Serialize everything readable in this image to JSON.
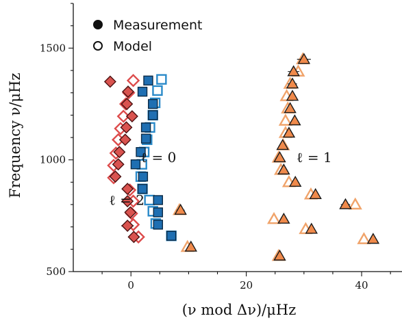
{
  "chart_data": {
    "type": "scatter",
    "xlabel": "(ν mod Δν)/μHz",
    "ylabel": "Frequency ν/μHz",
    "xlim": [
      -10,
      47
    ],
    "ylim": [
      500,
      1700
    ],
    "xticks": [
      0,
      20,
      40
    ],
    "yticks": [
      500,
      1000,
      1500
    ],
    "grid": false,
    "legend": {
      "position": "top-left",
      "entries": [
        {
          "label": "Measurement",
          "marker": "filled-circle"
        },
        {
          "label": "Model",
          "marker": "open-circle"
        }
      ]
    },
    "annotations": [
      {
        "text": "ℓ = 0",
        "x": 1.7,
        "y": 990
      },
      {
        "text": "ℓ = 1",
        "x": 28.7,
        "y": 990
      },
      {
        "text": "ℓ = 2",
        "x": -3.8,
        "y": 798
      }
    ],
    "colors": {
      "l0_fill": "#1f6fb2",
      "l0_edge": "#0b2a45",
      "l0_model": "#2a8ac9",
      "l1_fill": "#f08a4b",
      "l1_edge": "#1a1a1a",
      "l1_model": "#f0a36a",
      "l2_fill": "#d9534f",
      "l2_edge": "#4a1010",
      "l2_model": "#dd4b4b"
    },
    "series": [
      {
        "degree": 0,
        "kind": "measurement",
        "marker": "square",
        "points": [
          {
            "x": 3.0,
            "y": 1355,
            "xerr": 0.8
          },
          {
            "x": 2.0,
            "y": 1305,
            "xerr": 0.6
          },
          {
            "x": 3.8,
            "y": 1250,
            "xerr": 0.6
          },
          {
            "x": 3.8,
            "y": 1200,
            "xerr": 0.5
          },
          {
            "x": 2.6,
            "y": 1145,
            "xerr": 0.5
          },
          {
            "x": 2.6,
            "y": 1095,
            "xerr": 0.5
          },
          {
            "x": 1.7,
            "y": 1035,
            "xerr": 0.6
          },
          {
            "x": 0.8,
            "y": 980,
            "xerr": 0.7
          },
          {
            "x": 2.1,
            "y": 925,
            "xerr": 0.5
          },
          {
            "x": 2.0,
            "y": 870,
            "xerr": 0.5
          },
          {
            "x": 4.7,
            "y": 820,
            "xerr": 0.5
          },
          {
            "x": 4.7,
            "y": 765,
            "xerr": 0.5
          },
          {
            "x": 4.7,
            "y": 710,
            "xerr": 0.6
          },
          {
            "x": 7.0,
            "y": 660,
            "xerr": 0.7
          }
        ]
      },
      {
        "degree": 0,
        "kind": "model",
        "marker": "square",
        "points": [
          {
            "x": 5.3,
            "y": 1360
          },
          {
            "x": 4.6,
            "y": 1310
          },
          {
            "x": 4.2,
            "y": 1255
          },
          {
            "x": 3.8,
            "y": 1200
          },
          {
            "x": 3.3,
            "y": 1145
          },
          {
            "x": 2.8,
            "y": 1090
          },
          {
            "x": 2.3,
            "y": 1035
          },
          {
            "x": 1.9,
            "y": 980
          },
          {
            "x": 1.7,
            "y": 925
          },
          {
            "x": 2.0,
            "y": 870
          },
          {
            "x": 3.2,
            "y": 820
          },
          {
            "x": 3.8,
            "y": 770
          },
          {
            "x": 4.3,
            "y": 715
          },
          {
            "x": 7.0,
            "y": 660
          }
        ]
      },
      {
        "degree": 1,
        "kind": "measurement",
        "marker": "triangle",
        "points": [
          {
            "x": 30.0,
            "y": 1450,
            "xerr": 1.2
          },
          {
            "x": 28.2,
            "y": 1395,
            "xerr": 1.0
          },
          {
            "x": 28.0,
            "y": 1340,
            "xerr": 0.8
          },
          {
            "x": 28.0,
            "y": 1285,
            "xerr": 0.6
          },
          {
            "x": 27.6,
            "y": 1230,
            "xerr": 0.6
          },
          {
            "x": 28.4,
            "y": 1175,
            "xerr": 0.6
          },
          {
            "x": 27.4,
            "y": 1120,
            "xerr": 0.6
          },
          {
            "x": 26.3,
            "y": 1065,
            "xerr": 0.6
          },
          {
            "x": 25.8,
            "y": 1010,
            "xerr": 0.6
          },
          {
            "x": 26.5,
            "y": 955,
            "xerr": 0.6
          },
          {
            "x": 28.5,
            "y": 900,
            "xerr": 0.6
          },
          {
            "x": 32.0,
            "y": 845,
            "xerr": 0.6
          },
          {
            "x": 37.2,
            "y": 800,
            "xerr": 0.8
          },
          {
            "x": 8.6,
            "y": 775,
            "xerr": 0.7
          },
          {
            "x": 26.5,
            "y": 735,
            "xerr": 0.5
          },
          {
            "x": 31.3,
            "y": 690,
            "xerr": 0.6
          },
          {
            "x": 42.0,
            "y": 645,
            "xerr": 0.6
          },
          {
            "x": 10.4,
            "y": 610,
            "xerr": 0.6
          },
          {
            "x": 25.8,
            "y": 570,
            "xerr": 0.6
          }
        ]
      },
      {
        "degree": 1,
        "kind": "model",
        "marker": "triangle",
        "points": [
          {
            "x": 29.8,
            "y": 1450
          },
          {
            "x": 29.0,
            "y": 1395
          },
          {
            "x": 27.6,
            "y": 1340
          },
          {
            "x": 27.0,
            "y": 1285
          },
          {
            "x": 27.2,
            "y": 1230
          },
          {
            "x": 26.8,
            "y": 1175
          },
          {
            "x": 26.8,
            "y": 1120
          },
          {
            "x": 26.4,
            "y": 1065
          },
          {
            "x": 25.6,
            "y": 1010
          },
          {
            "x": 26.0,
            "y": 955
          },
          {
            "x": 27.4,
            "y": 900
          },
          {
            "x": 31.2,
            "y": 845
          },
          {
            "x": 38.9,
            "y": 800
          },
          {
            "x": 8.4,
            "y": 775
          },
          {
            "x": 24.8,
            "y": 735
          },
          {
            "x": 30.3,
            "y": 690
          },
          {
            "x": 40.4,
            "y": 645
          },
          {
            "x": 9.8,
            "y": 610
          },
          {
            "x": 25.6,
            "y": 570
          }
        ]
      },
      {
        "degree": 2,
        "kind": "measurement",
        "marker": "diamond",
        "points": [
          {
            "x": -3.6,
            "y": 1350,
            "xerr": 0.9
          },
          {
            "x": -0.5,
            "y": 1305,
            "xerr": 0.7
          },
          {
            "x": -0.7,
            "y": 1250,
            "xerr": 0.6
          },
          {
            "x": 0.2,
            "y": 1195,
            "xerr": 0.6
          },
          {
            "x": -0.8,
            "y": 1145,
            "xerr": 0.6
          },
          {
            "x": -1.0,
            "y": 1090,
            "xerr": 0.6
          },
          {
            "x": -2.0,
            "y": 1035,
            "xerr": 0.6
          },
          {
            "x": -2.2,
            "y": 980,
            "xerr": 0.6
          },
          {
            "x": -2.7,
            "y": 925,
            "xerr": 0.6
          },
          {
            "x": -0.6,
            "y": 870,
            "xerr": 0.5
          },
          {
            "x": -0.6,
            "y": 815,
            "xerr": 0.5
          },
          {
            "x": -0.1,
            "y": 765,
            "xerr": 0.5
          },
          {
            "x": -0.6,
            "y": 705,
            "xerr": 1.1
          },
          {
            "x": 0.5,
            "y": 655,
            "xerr": 0.5
          }
        ]
      },
      {
        "degree": 2,
        "kind": "model",
        "marker": "diamond",
        "points": [
          {
            "x": 0.4,
            "y": 1355
          },
          {
            "x": -0.4,
            "y": 1300
          },
          {
            "x": -0.9,
            "y": 1250
          },
          {
            "x": -1.3,
            "y": 1195
          },
          {
            "x": -1.8,
            "y": 1140
          },
          {
            "x": -2.2,
            "y": 1090
          },
          {
            "x": -2.6,
            "y": 1030
          },
          {
            "x": -3.0,
            "y": 975
          },
          {
            "x": -3.0,
            "y": 920
          },
          {
            "x": -0.2,
            "y": 865
          },
          {
            "x": 0.4,
            "y": 815
          },
          {
            "x": 0.1,
            "y": 760
          },
          {
            "x": 0.4,
            "y": 710
          },
          {
            "x": 1.3,
            "y": 655
          }
        ]
      }
    ]
  }
}
